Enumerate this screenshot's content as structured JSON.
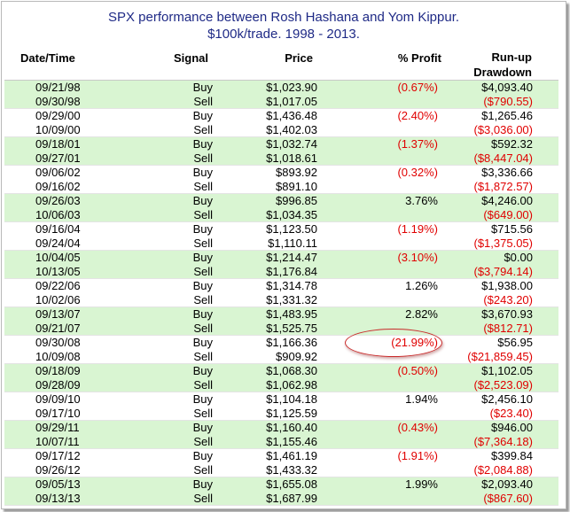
{
  "title": {
    "line1": "SPX performance between Rosh Hashana and Yom Kippur.",
    "line2": "$100k/trade. 1998 - 2013."
  },
  "columns": {
    "date": "Date/Time",
    "signal": "Signal",
    "price": "Price",
    "profit": "% Profit",
    "runup": "Run-up",
    "drawdown": "Drawdown"
  },
  "colors": {
    "green_band": "#d9f5d2",
    "negative": "#e00000",
    "title": "#1f2a86",
    "highlight": "#c92b2b"
  },
  "highlighted_value": "(21.99%)",
  "trades": [
    {
      "buy": {
        "date": "09/21/98",
        "signal": "Buy",
        "price": "$1,023.90",
        "profit": "(0.67%)",
        "value": "$4,093.40"
      },
      "sell": {
        "date": "09/30/98",
        "signal": "Sell",
        "price": "$1,017.05",
        "value": "($790.55)"
      }
    },
    {
      "buy": {
        "date": "09/29/00",
        "signal": "Buy",
        "price": "$1,436.48",
        "profit": "(2.40%)",
        "value": "$1,265.46"
      },
      "sell": {
        "date": "10/09/00",
        "signal": "Sell",
        "price": "$1,402.03",
        "value": "($3,036.00)"
      }
    },
    {
      "buy": {
        "date": "09/18/01",
        "signal": "Buy",
        "price": "$1,032.74",
        "profit": "(1.37%)",
        "value": "$592.32"
      },
      "sell": {
        "date": "09/27/01",
        "signal": "Sell",
        "price": "$1,018.61",
        "value": "($8,447.04)"
      }
    },
    {
      "buy": {
        "date": "09/06/02",
        "signal": "Buy",
        "price": "$893.92",
        "profit": "(0.32%)",
        "value": "$3,336.66"
      },
      "sell": {
        "date": "09/16/02",
        "signal": "Sell",
        "price": "$891.10",
        "value": "($1,872.57)"
      }
    },
    {
      "buy": {
        "date": "09/26/03",
        "signal": "Buy",
        "price": "$996.85",
        "profit": "3.76%",
        "value": "$4,246.00"
      },
      "sell": {
        "date": "10/06/03",
        "signal": "Sell",
        "price": "$1,034.35",
        "value": "($649.00)"
      }
    },
    {
      "buy": {
        "date": "09/16/04",
        "signal": "Buy",
        "price": "$1,123.50",
        "profit": "(1.19%)",
        "value": "$715.56"
      },
      "sell": {
        "date": "09/24/04",
        "signal": "Sell",
        "price": "$1,110.11",
        "value": "($1,375.05)"
      }
    },
    {
      "buy": {
        "date": "10/04/05",
        "signal": "Buy",
        "price": "$1,214.47",
        "profit": "(3.10%)",
        "value": "$0.00"
      },
      "sell": {
        "date": "10/13/05",
        "signal": "Sell",
        "price": "$1,176.84",
        "value": "($3,794.14)"
      }
    },
    {
      "buy": {
        "date": "09/22/06",
        "signal": "Buy",
        "price": "$1,314.78",
        "profit": "1.26%",
        "value": "$1,938.00"
      },
      "sell": {
        "date": "10/02/06",
        "signal": "Sell",
        "price": "$1,331.32",
        "value": "($243.20)"
      }
    },
    {
      "buy": {
        "date": "09/13/07",
        "signal": "Buy",
        "price": "$1,483.95",
        "profit": "2.82%",
        "value": "$3,670.93"
      },
      "sell": {
        "date": "09/21/07",
        "signal": "Sell",
        "price": "$1,525.75",
        "value": "($812.71)"
      }
    },
    {
      "buy": {
        "date": "09/30/08",
        "signal": "Buy",
        "price": "$1,166.36",
        "profit": "(21.99%)",
        "value": "$56.95"
      },
      "sell": {
        "date": "10/09/08",
        "signal": "Sell",
        "price": "$909.92",
        "value": "($21,859.45)"
      }
    },
    {
      "buy": {
        "date": "09/18/09",
        "signal": "Buy",
        "price": "$1,068.30",
        "profit": "(0.50%)",
        "value": "$1,102.05"
      },
      "sell": {
        "date": "09/28/09",
        "signal": "Sell",
        "price": "$1,062.98",
        "value": "($2,523.09)"
      }
    },
    {
      "buy": {
        "date": "09/09/10",
        "signal": "Buy",
        "price": "$1,104.18",
        "profit": "1.94%",
        "value": "$2,456.10"
      },
      "sell": {
        "date": "09/17/10",
        "signal": "Sell",
        "price": "$1,125.59",
        "value": "($23.40)"
      }
    },
    {
      "buy": {
        "date": "09/29/11",
        "signal": "Buy",
        "price": "$1,160.40",
        "profit": "(0.43%)",
        "value": "$946.00"
      },
      "sell": {
        "date": "10/07/11",
        "signal": "Sell",
        "price": "$1,155.46",
        "value": "($7,364.18)"
      }
    },
    {
      "buy": {
        "date": "09/17/12",
        "signal": "Buy",
        "price": "$1,461.19",
        "profit": "(1.91%)",
        "value": "$399.84"
      },
      "sell": {
        "date": "09/26/12",
        "signal": "Sell",
        "price": "$1,433.32",
        "value": "($2,084.88)"
      }
    },
    {
      "buy": {
        "date": "09/05/13",
        "signal": "Buy",
        "price": "$1,655.08",
        "profit": "1.99%",
        "value": "$2,093.40"
      },
      "sell": {
        "date": "09/13/13",
        "signal": "Sell",
        "price": "$1,687.99",
        "value": "($867.60)"
      }
    }
  ]
}
